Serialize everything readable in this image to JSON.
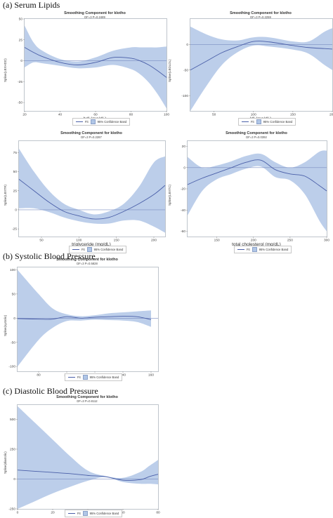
{
  "sections": {
    "a": "(a) Serum Lipids",
    "b": "(b) Systolic Blood Pressure",
    "c": "(c) Diastolic Blood Pressure"
  },
  "colors": {
    "fit": "#4a5fa8",
    "band": "#b0c6e6",
    "ref": "#7a8cc0"
  },
  "chart_data": [
    {
      "id": "hdl",
      "type": "line",
      "title": "Smoothing Component for klotho",
      "subtitle": "DF=3   P=0.2489",
      "xlabel": "hdl (mg/dL)",
      "ylabel": "Spline(LBXHDD)",
      "xlim": [
        20,
        100
      ],
      "ylim": [
        -60,
        50
      ],
      "xticks": [
        20,
        40,
        60,
        80,
        100
      ],
      "yticks": [
        -50,
        -25,
        0,
        25,
        50
      ],
      "legend": {
        "fit": "Fit",
        "band": "95% Confidence Band"
      },
      "x": [
        20,
        25,
        30,
        40,
        50,
        60,
        70,
        80,
        85,
        90,
        95,
        100
      ],
      "fit": [
        16,
        10,
        5,
        -2,
        -5,
        -2,
        4,
        3,
        0,
        -5,
        -12,
        -20
      ],
      "upper": [
        42,
        22,
        12,
        2,
        -1,
        4,
        12,
        16,
        16,
        16,
        16,
        17
      ],
      "lower": [
        -8,
        -2,
        -3,
        -6,
        -9,
        -8,
        -5,
        -10,
        -16,
        -26,
        -40,
        -57
      ]
    },
    {
      "id": "ldl",
      "type": "line",
      "title": "Smoothing Component for klotho",
      "subtitle": "DF=3   P=0.2259",
      "xlabel": "ldl (mg/dL)",
      "ylabel": "Spline(LBDLDL)",
      "xlim": [
        20,
        200
      ],
      "ylim": [
        -130,
        50
      ],
      "xticks": [
        50,
        100,
        150,
        200
      ],
      "yticks": [
        -100,
        -50,
        0
      ],
      "legend": {
        "fit": "Fit",
        "band": "95% Confidence Band"
      },
      "x": [
        20,
        40,
        60,
        80,
        100,
        120,
        150,
        170,
        190,
        200
      ],
      "fit": [
        -50,
        -33,
        -16,
        -4,
        6,
        5,
        -2,
        -6,
        -8,
        -9
      ],
      "upper": [
        35,
        20,
        10,
        8,
        14,
        14,
        6,
        6,
        25,
        32
      ],
      "lower": [
        -130,
        -82,
        -40,
        -15,
        -2,
        -4,
        -10,
        -18,
        -40,
        -50
      ]
    },
    {
      "id": "triglyceride",
      "type": "line",
      "title": "Smoothing Component for klotho",
      "subtitle": "DF=3   P=0.2287",
      "xlabel": "triglyceride (mg/dL)",
      "ylabel": "Spline(LBXTR)",
      "xlim": [
        20,
        215
      ],
      "ylim": [
        -35,
        90
      ],
      "xticks": [
        50,
        100,
        150,
        200
      ],
      "yticks": [
        -25,
        0,
        25,
        50,
        75
      ],
      "legend": {
        "fit": "Fit",
        "band": "95% Confidence Band"
      },
      "x": [
        20,
        40,
        60,
        80,
        100,
        120,
        140,
        160,
        180,
        200,
        215
      ],
      "fit": [
        40,
        25,
        10,
        -2,
        -8,
        -12,
        -10,
        -2,
        8,
        20,
        32
      ],
      "upper": [
        80,
        50,
        25,
        8,
        0,
        -6,
        -2,
        8,
        30,
        62,
        70
      ],
      "lower": [
        2,
        2,
        -3,
        -10,
        -15,
        -18,
        -18,
        -14,
        -14,
        -22,
        -30
      ]
    },
    {
      "id": "total_cholesterol",
      "type": "line",
      "title": "Smoothing Component for klotho",
      "subtitle": "DF=3   P=0.0392",
      "xlabel": "total cholesterol (mg/dL)",
      "ylabel": "Spline(LBXTC)",
      "xlim": [
        110,
        300
      ],
      "ylim": [
        -65,
        25
      ],
      "xticks": [
        150,
        200,
        250,
        300
      ],
      "yticks": [
        -60,
        -40,
        -20,
        0,
        20
      ],
      "legend": {
        "fit": "Fit",
        "band": "95% Confidence Band"
      },
      "x": [
        110,
        130,
        150,
        170,
        190,
        210,
        230,
        250,
        270,
        290,
        300
      ],
      "fit": [
        -16,
        -10,
        -5,
        0,
        5,
        7,
        -2,
        -6,
        -8,
        -17,
        -22
      ],
      "upper": [
        10,
        0,
        2,
        6,
        11,
        13,
        5,
        0,
        5,
        15,
        16
      ],
      "lower": [
        -45,
        -22,
        -11,
        -6,
        -1,
        1,
        -9,
        -12,
        -25,
        -50,
        -60
      ]
    },
    {
      "id": "systolic",
      "type": "line",
      "title": "Smoothing Component for klotho",
      "subtitle": "DF=3   P=0.5828",
      "xlabel": "systolic",
      "ylabel": "Spline(systolic)",
      "xlim": [
        65,
        165
      ],
      "ylim": [
        -110,
        105
      ],
      "xticks": [
        80,
        100,
        120,
        140,
        160
      ],
      "yticks": [
        -100,
        -50,
        0,
        50,
        100
      ],
      "legend": {
        "fit": "Fit",
        "band": "95% Confidence Band"
      },
      "x": [
        65,
        80,
        90,
        100,
        110,
        120,
        130,
        140,
        150,
        160
      ],
      "fit": [
        -1,
        -2,
        -2,
        3,
        0,
        2,
        3,
        4,
        3,
        -3
      ],
      "upper": [
        100,
        50,
        20,
        8,
        4,
        6,
        10,
        12,
        14,
        16
      ],
      "lower": [
        -100,
        -45,
        -20,
        -6,
        -5,
        -3,
        -4,
        -5,
        -8,
        -18
      ]
    },
    {
      "id": "diastolic",
      "type": "line",
      "title": "Smoothing Component for klotho",
      "subtitle": "DF=3   P=0.8112",
      "xlabel": "diastolic",
      "ylabel": "Spline(diastolic)",
      "xlim": [
        0,
        80
      ],
      "ylim": [
        -250,
        620
      ],
      "xticks": [
        0,
        20,
        40,
        60,
        80
      ],
      "yticks": [
        -250,
        0,
        250,
        500
      ],
      "legend": {
        "fit": "Fit",
        "band": "95% Confidence Band"
      },
      "x": [
        0,
        10,
        20,
        30,
        40,
        50,
        60,
        70,
        75,
        80
      ],
      "fit": [
        75,
        65,
        55,
        45,
        30,
        20,
        -10,
        -5,
        20,
        40
      ],
      "upper": [
        610,
        470,
        330,
        190,
        70,
        25,
        10,
        60,
        110,
        160
      ],
      "lower": [
        -250,
        -185,
        -120,
        -65,
        -15,
        15,
        -25,
        -40,
        -40,
        -45
      ]
    }
  ]
}
